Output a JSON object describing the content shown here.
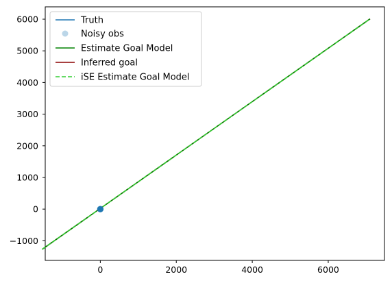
{
  "chart_data": {
    "type": "line",
    "xlim": [
      -1450,
      7480
    ],
    "ylim": [
      -1620,
      6390
    ],
    "x_ticks": [
      0,
      2000,
      4000,
      6000
    ],
    "x_tick_labels": [
      "0",
      "2000",
      "4000",
      "6000"
    ],
    "y_ticks": [
      -1000,
      0,
      1000,
      2000,
      3000,
      4000,
      5000,
      6000
    ],
    "y_tick_labels": [
      "−1000",
      "0",
      "1000",
      "2000",
      "3000",
      "4000",
      "5000",
      "6000"
    ],
    "legend_position": "upper-left",
    "series": [
      {
        "name": "Truth",
        "kind": "line",
        "color": "#1f77b4",
        "linestyle": "solid",
        "x": [
          -5,
          0,
          5,
          8
        ],
        "y": [
          -4,
          0,
          4,
          6
        ]
      },
      {
        "name": "Noisy obs",
        "kind": "scatter",
        "color": "#1f77b4",
        "alpha": 0.3,
        "x": [
          -5,
          -3,
          -2,
          0,
          1,
          2,
          3,
          5,
          6,
          0,
          -1,
          4
        ],
        "y": [
          -3,
          2,
          -4,
          1,
          3,
          -2,
          4,
          2,
          -1,
          -3,
          5,
          0
        ]
      },
      {
        "name": "Estimate Goal Model",
        "kind": "line",
        "color": "#008000",
        "linestyle": "solid",
        "x": [
          -1530,
          7100
        ],
        "y": [
          -1270,
          6010
        ]
      },
      {
        "name": "Inferred goal",
        "kind": "line",
        "color": "#8b0000",
        "linestyle": "solid",
        "x": [
          -1530,
          7100
        ],
        "y": [
          -1270,
          6010
        ]
      },
      {
        "name": "iSE Estimate Goal Model",
        "kind": "line",
        "color": "#32cd32",
        "linestyle": "dashed",
        "x": [
          -1530,
          7100
        ],
        "y": [
          -1270,
          6010
        ]
      }
    ]
  }
}
